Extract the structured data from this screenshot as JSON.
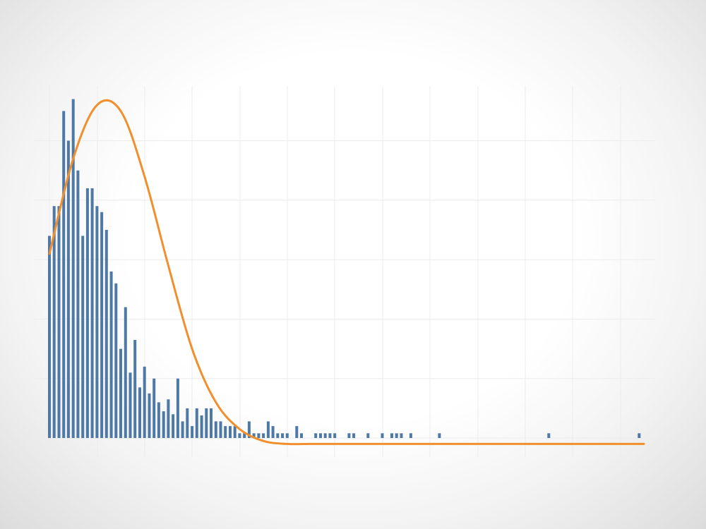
{
  "chart_data": {
    "type": "bar",
    "title": "",
    "xlabel": "",
    "ylabel": "",
    "grid": true,
    "legend": "none",
    "bar_color": "#4e79a7",
    "curve_color": "#f28e2b",
    "xlim": [
      0,
      1
    ],
    "ylim": [
      -0.2,
      6
    ],
    "bins": {
      "x": [
        0,
        1,
        2,
        3,
        4,
        5,
        6,
        7,
        8,
        9,
        10,
        11,
        12,
        13,
        14,
        15,
        16,
        17,
        18,
        19,
        20,
        21,
        22,
        23,
        24,
        25,
        26,
        27,
        28,
        29,
        30,
        31,
        32,
        33,
        34,
        35,
        36,
        37,
        38,
        39,
        40,
        41,
        42,
        43,
        44,
        45,
        46,
        47,
        48,
        49,
        50,
        52,
        53,
        56,
        57,
        58,
        59,
        60,
        63,
        64,
        67,
        70,
        72,
        73,
        74,
        76,
        82,
        105,
        124
      ],
      "values": [
        3.4,
        3.9,
        3.9,
        5.5,
        5.0,
        5.7,
        4.5,
        3.4,
        4.2,
        4.2,
        3.9,
        3.8,
        3.5,
        2.8,
        2.6,
        1.5,
        2.2,
        1.1,
        1.65,
        0.85,
        1.2,
        0.75,
        1.0,
        0.6,
        0.45,
        0.65,
        0.4,
        1.0,
        0.28,
        0.5,
        0.2,
        0.5,
        0.38,
        0.5,
        0.5,
        0.28,
        0.28,
        0.2,
        0.2,
        0.2,
        0.08,
        0.08,
        0.28,
        0.08,
        0.08,
        0.08,
        0.28,
        0.2,
        0.08,
        0.08,
        0.08,
        0.2,
        0.08,
        0.08,
        0.08,
        0.08,
        0.08,
        0.08,
        0.08,
        0.08,
        0.08,
        0.08,
        0.08,
        0.08,
        0.08,
        0.08,
        0.08,
        0.08,
        0.08
      ],
      "xmax": 125
    },
    "curve": {
      "x": [
        0,
        5,
        10,
        15,
        20,
        25,
        30,
        35,
        40,
        45,
        50,
        55,
        60,
        65,
        70,
        80,
        90,
        100,
        110,
        125
      ],
      "y": [
        3.1,
        4.7,
        5.6,
        5.5,
        4.4,
        2.9,
        1.5,
        0.6,
        0.15,
        -0.05,
        -0.1,
        -0.1,
        -0.1,
        -0.1,
        -0.1,
        -0.1,
        -0.1,
        -0.1,
        -0.1,
        -0.1
      ]
    }
  }
}
